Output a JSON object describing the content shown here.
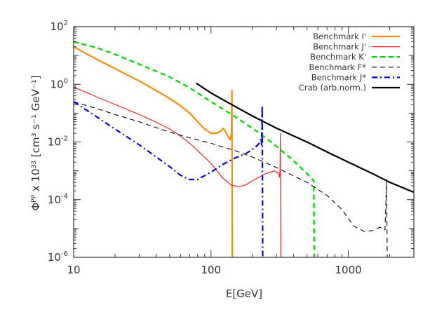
{
  "chart_data": {
    "type": "line",
    "xlabel": "E[GeV]",
    "ylabel_main": "Φ",
    "ylabel_sup": "PP",
    "ylabel_mid": " x 10",
    "ylabel_exp": "33",
    "ylabel_units": " [cm³ s⁻¹ GeV⁻¹]",
    "xscale": "log",
    "yscale": "log",
    "xlim": [
      10,
      3000
    ],
    "ylim": [
      1e-06,
      100
    ],
    "x_ticks": [
      10,
      100,
      1000
    ],
    "x_tick_labels": [
      "10",
      "100",
      "1000"
    ],
    "y_ticks": [
      1e-06,
      0.0001,
      0.01,
      1,
      100
    ],
    "y_tick_labels": [
      {
        "base": "10",
        "exp": "-6"
      },
      {
        "base": "10",
        "exp": "-4"
      },
      {
        "base": "10",
        "exp": "-2"
      },
      {
        "base": "10",
        "exp": "0"
      },
      {
        "base": "10",
        "exp": "2"
      }
    ],
    "grid": false,
    "legend_position": "top-right",
    "series": [
      {
        "name": "Benchmark I'",
        "color": "#ff8c00",
        "style": "solid",
        "width": 2.2,
        "points": [
          [
            10,
            20
          ],
          [
            15,
            7
          ],
          [
            20,
            3.5
          ],
          [
            30,
            1.3
          ],
          [
            40,
            0.6
          ],
          [
            50,
            0.32
          ],
          [
            60,
            0.18
          ],
          [
            70,
            0.1
          ],
          [
            80,
            0.05
          ],
          [
            90,
            0.028
          ],
          [
            100,
            0.02
          ],
          [
            110,
            0.02
          ],
          [
            118,
            0.024
          ],
          [
            123,
            0.03
          ],
          [
            128,
            0.022
          ],
          [
            133,
            0.015
          ],
          [
            138,
            0.012
          ],
          [
            141,
            0.02
          ],
          [
            142,
            0.6
          ],
          [
            143,
            9e-07
          ]
        ]
      },
      {
        "name": "Benchmark J'",
        "color": "#ff2020",
        "style": "solid",
        "width": 1.2,
        "points": [
          [
            10,
            0.8
          ],
          [
            15,
            0.35
          ],
          [
            20,
            0.2
          ],
          [
            30,
            0.09
          ],
          [
            40,
            0.048
          ],
          [
            50,
            0.028
          ],
          [
            60,
            0.016
          ],
          [
            70,
            0.009
          ],
          [
            80,
            0.005
          ],
          [
            100,
            0.0018
          ],
          [
            120,
            0.0006
          ],
          [
            140,
            0.00032
          ],
          [
            160,
            0.00028
          ],
          [
            180,
            0.00033
          ],
          [
            200,
            0.00045
          ],
          [
            250,
            0.0008
          ],
          [
            290,
            0.001
          ],
          [
            310,
            0.0008
          ],
          [
            315,
            0.0006
          ],
          [
            318,
            0.001
          ],
          [
            320,
            0.02
          ],
          [
            322,
            9e-07
          ]
        ]
      },
      {
        "name": "Benchmark K'",
        "color": "#00e000",
        "style": "dash",
        "width": 2.4,
        "points": [
          [
            10,
            30
          ],
          [
            15,
            18
          ],
          [
            20,
            11
          ],
          [
            30,
            5
          ],
          [
            50,
            1.8
          ],
          [
            70,
            0.75
          ],
          [
            100,
            0.25
          ],
          [
            150,
            0.075
          ],
          [
            200,
            0.03
          ],
          [
            250,
            0.014
          ],
          [
            300,
            0.007
          ],
          [
            400,
            0.0022
          ],
          [
            500,
            0.0008
          ],
          [
            560,
            0.00045
          ],
          [
            565,
            9e-07
          ]
        ]
      },
      {
        "name": "Benchmark F*",
        "color": "#000000",
        "style": "dash",
        "width": 1.1,
        "points": [
          [
            10,
            0.25
          ],
          [
            15,
            0.14
          ],
          [
            20,
            0.09
          ],
          [
            30,
            0.05
          ],
          [
            50,
            0.022
          ],
          [
            70,
            0.014
          ],
          [
            100,
            0.009
          ],
          [
            150,
            0.005
          ],
          [
            200,
            0.003
          ],
          [
            300,
            0.0013
          ],
          [
            500,
            0.0004
          ],
          [
            700,
            0.00014
          ],
          [
            900,
            4.5e-05
          ],
          [
            1100,
            1.2e-05
          ],
          [
            1300,
            8e-06
          ],
          [
            1500,
            8.5e-06
          ],
          [
            1700,
            1.1e-05
          ],
          [
            1850,
            9e-06
          ],
          [
            1900,
            0.0005
          ],
          [
            1920,
            9e-07
          ]
        ]
      },
      {
        "name": "Benchmark J*",
        "color": "#0000ee",
        "style": "dashdot",
        "width": 2.2,
        "points": [
          [
            10,
            0.25
          ],
          [
            15,
            0.07
          ],
          [
            20,
            0.028
          ],
          [
            30,
            0.008
          ],
          [
            40,
            0.003
          ],
          [
            50,
            0.0014
          ],
          [
            60,
            0.0007
          ],
          [
            70,
            0.0005
          ],
          [
            80,
            0.0005
          ],
          [
            100,
            0.0009
          ],
          [
            120,
            0.0016
          ],
          [
            150,
            0.0028
          ],
          [
            180,
            0.004
          ],
          [
            200,
            0.0055
          ],
          [
            220,
            0.008
          ],
          [
            228,
            0.01
          ],
          [
            232,
            0.014
          ],
          [
            234,
            0.008
          ],
          [
            236,
            0.18
          ],
          [
            238,
            9e-07
          ]
        ]
      },
      {
        "name": "Crab (arb.norm.)",
        "color": "#000000",
        "style": "solid",
        "width": 2.2,
        "points": [
          [
            78,
            1.1
          ],
          [
            100,
            0.5
          ],
          [
            150,
            0.17
          ],
          [
            200,
            0.08
          ],
          [
            300,
            0.03
          ],
          [
            500,
            0.01
          ],
          [
            700,
            0.0045
          ],
          [
            1000,
            0.002
          ],
          [
            1500,
            0.0008
          ],
          [
            2000,
            0.0004
          ],
          [
            3000,
            0.00018
          ]
        ]
      }
    ]
  }
}
